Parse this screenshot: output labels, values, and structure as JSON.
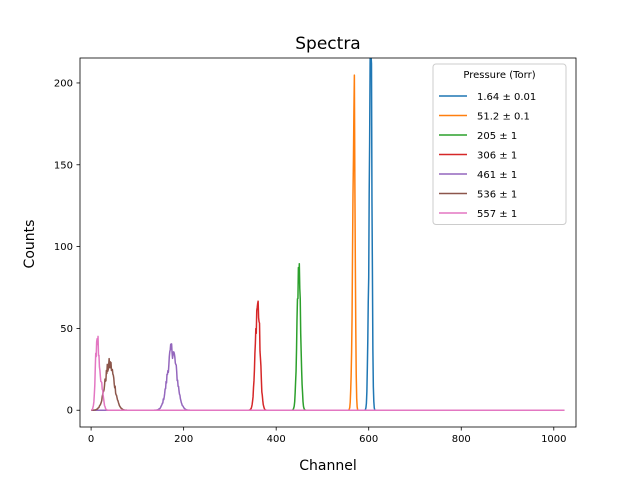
{
  "chart_data": {
    "type": "line",
    "title": "Spectra",
    "xlabel": "Channel",
    "ylabel": "Counts",
    "xlim": [
      -24,
      1048
    ],
    "ylim": [
      -10.25,
      215.25
    ],
    "xticks": [
      0,
      200,
      400,
      600,
      800,
      1000
    ],
    "yticks": [
      0,
      50,
      100,
      150,
      200
    ],
    "grid": false,
    "legend": {
      "title": "Pressure (Torr)",
      "placement": "top-right"
    },
    "channel_range": [
      0,
      1023
    ],
    "series": [
      {
        "name": "1.64 ± 0.01",
        "color": "#1f77b4",
        "peaks": [
          {
            "center": 605,
            "sigma": 2.2,
            "height": 205
          },
          {
            "center": 601,
            "sigma": 2.5,
            "height": 80
          }
        ]
      },
      {
        "name": "51.2 ± 0.1",
        "color": "#ff7f0e",
        "peaks": [
          {
            "center": 569,
            "sigma": 2.0,
            "height": 152
          },
          {
            "center": 566,
            "sigma": 2.6,
            "height": 70
          }
        ]
      },
      {
        "name": "205 ± 1",
        "color": "#2ca02c",
        "peaks": [
          {
            "center": 449,
            "sigma": 3.8,
            "height": 88
          }
        ]
      },
      {
        "name": "306 ± 1",
        "color": "#d62728",
        "peaks": [
          {
            "center": 360,
            "sigma": 5.0,
            "height": 65
          }
        ]
      },
      {
        "name": "461 ± 1",
        "color": "#9467bd",
        "peaks": [
          {
            "center": 175,
            "sigma": 10.0,
            "height": 37
          }
        ]
      },
      {
        "name": "536 ± 1",
        "color": "#8c564b",
        "peaks": [
          {
            "center": 40,
            "sigma": 10.0,
            "height": 28
          }
        ]
      },
      {
        "name": "557 ± 1",
        "color": "#e377c2",
        "peaks": [
          {
            "center": 13,
            "sigma": 3.5,
            "height": 44
          },
          {
            "center": 22,
            "sigma": 4.0,
            "height": 15
          }
        ]
      }
    ]
  }
}
